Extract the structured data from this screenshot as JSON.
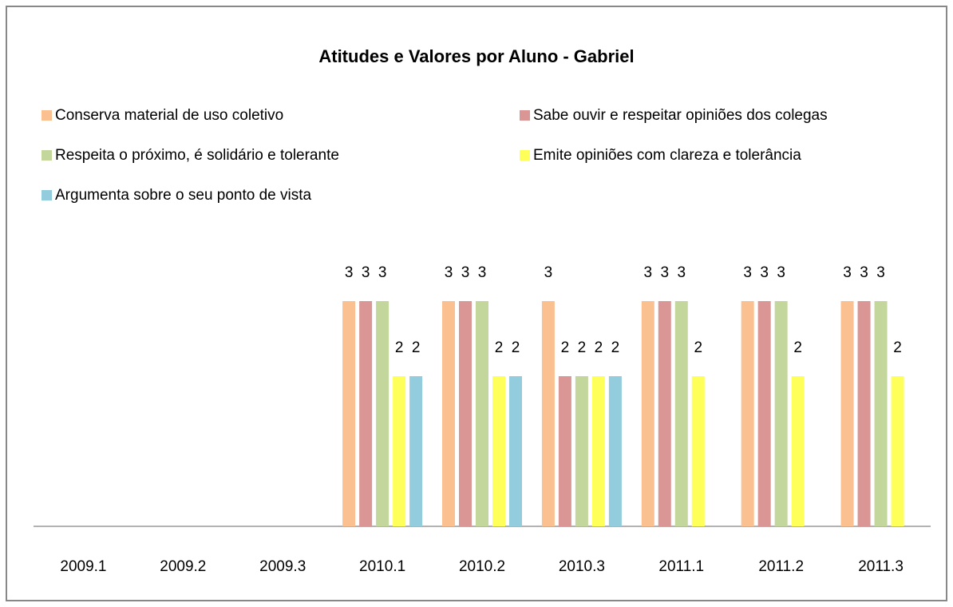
{
  "chart_data": {
    "type": "bar",
    "title": "Atitudes e Valores por Aluno - Gabriel",
    "categories": [
      "2009.1",
      "2009.2",
      "2009.3",
      "2010.1",
      "2010.2",
      "2010.3",
      "2011.1",
      "2011.2",
      "2011.3"
    ],
    "series": [
      {
        "name": "Conserva material de uso coletivo",
        "color": "#fac090",
        "values": [
          null,
          null,
          null,
          3,
          3,
          3,
          3,
          3,
          3
        ]
      },
      {
        "name": "Sabe ouvir e respeitar opiniões dos colegas",
        "color": "#d99694",
        "values": [
          null,
          null,
          null,
          3,
          3,
          2,
          3,
          3,
          3
        ]
      },
      {
        "name": "Respeita o próximo, é solidário e tolerante",
        "color": "#c3d69b",
        "values": [
          null,
          null,
          null,
          3,
          3,
          2,
          3,
          3,
          3
        ]
      },
      {
        "name": "Emite opiniões com clareza e tolerância",
        "color": "#ffff5a",
        "values": [
          null,
          null,
          null,
          2,
          2,
          2,
          2,
          2,
          2
        ]
      },
      {
        "name": "Argumenta sobre o seu ponto de vista",
        "color": "#93cddd",
        "values": [
          null,
          null,
          null,
          2,
          2,
          2,
          null,
          null,
          null
        ]
      }
    ],
    "ylim": [
      0,
      3.5
    ],
    "data_labels": true
  }
}
